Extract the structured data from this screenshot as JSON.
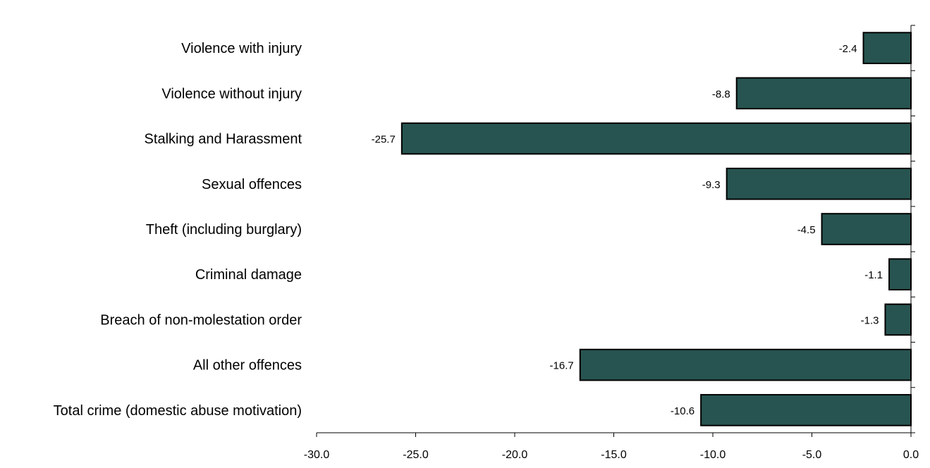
{
  "chart_data": {
    "type": "bar",
    "orientation": "horizontal",
    "categories": [
      "Violence with injury",
      "Violence without injury",
      "Stalking and Harassment",
      "Sexual offences",
      "Theft (including burglary)",
      "Criminal damage",
      "Breach of non-molestation order",
      "All other offences",
      "Total crime (domestic abuse motivation)"
    ],
    "values": [
      -2.4,
      -8.8,
      -25.7,
      -9.3,
      -4.5,
      -1.1,
      -1.3,
      -16.7,
      -10.6
    ],
    "value_labels": [
      "-2.4",
      "-8.8",
      "-25.7",
      "-9.3",
      "-4.5",
      "-1.1",
      "-1.3",
      "-16.7",
      "-10.6"
    ],
    "xlim": [
      -30,
      0
    ],
    "x_ticks": [
      "-30.0",
      "-25.0",
      "-20.0",
      "-15.0",
      "-10.0",
      "-5.0",
      "0.0"
    ],
    "bar_color": "#275450",
    "grid": false,
    "legend": "none"
  }
}
